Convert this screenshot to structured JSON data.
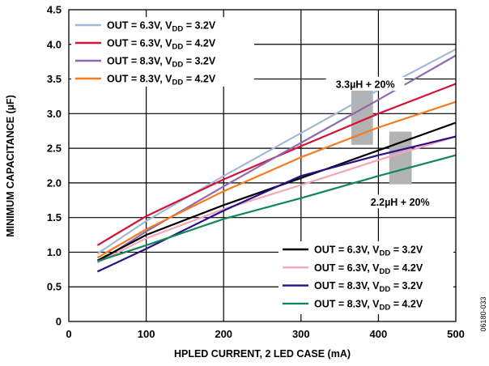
{
  "chart_data": {
    "type": "line",
    "xlabel": "HPLED CURRENT, 2 LED CASE (mA)",
    "ylabel": "MINIMUM CAPACITANCE (µF)",
    "xlim": [
      0,
      500
    ],
    "ylim": [
      0,
      4.5
    ],
    "xticks": [
      0,
      100,
      200,
      300,
      400,
      500
    ],
    "yticks": [
      0,
      0.5,
      1.0,
      1.5,
      2.0,
      2.5,
      3.0,
      3.5,
      4.0,
      4.5
    ],
    "x_tick_labels": [
      "0",
      "100",
      "200",
      "300",
      "400",
      "500"
    ],
    "y_tick_labels": [
      "0",
      "0.5",
      "1.0",
      "1.5",
      "2.0",
      "2.5",
      "3.0",
      "3.5",
      "4.0",
      "4.5"
    ],
    "grid": true,
    "legend_placement": "top-left and bottom-right",
    "series": [
      {
        "label_main": "OUT = 6.3V, V",
        "label_sub": "DD",
        "label_tail": " = 3.2V",
        "color": "#a3b7d6",
        "group": "top",
        "x": [
          37,
          100,
          200,
          300,
          400,
          500
        ],
        "y": [
          0.98,
          1.45,
          2.1,
          2.72,
          3.34,
          3.93
        ]
      },
      {
        "label_main": "OUT = 6.3V, V",
        "label_sub": "DD",
        "label_tail": " = 4.2V",
        "color": "#d2143a",
        "group": "top",
        "x": [
          37,
          100,
          200,
          300,
          400,
          500
        ],
        "y": [
          1.1,
          1.52,
          2.05,
          2.53,
          3.0,
          3.43
        ]
      },
      {
        "label_main": "OUT = 8.3V, V",
        "label_sub": "DD",
        "label_tail": " = 3.2V",
        "color": "#8c6bb1",
        "group": "top",
        "x": [
          37,
          100,
          200,
          300,
          400,
          500
        ],
        "y": [
          0.85,
          1.3,
          1.95,
          2.58,
          3.2,
          3.84
        ]
      },
      {
        "label_main": "OUT = 8.3V, V",
        "label_sub": "DD",
        "label_tail": " = 4.2V",
        "color": "#f47b20",
        "group": "top",
        "x": [
          37,
          100,
          200,
          300,
          400,
          500
        ],
        "y": [
          0.92,
          1.33,
          1.88,
          2.37,
          2.8,
          3.17
        ]
      },
      {
        "label_main": "OUT = 6.3V, V",
        "label_sub": "DD",
        "label_tail": " = 3.2V",
        "color": "#000000",
        "group": "bottom",
        "x": [
          37,
          100,
          200,
          300,
          400,
          500
        ],
        "y": [
          0.88,
          1.25,
          1.68,
          2.07,
          2.47,
          2.87
        ]
      },
      {
        "label_main": "OUT = 6.3V, V",
        "label_sub": "DD",
        "label_tail": " = 4.2V",
        "color": "#f4a6b8",
        "group": "bottom",
        "x": [
          37,
          100,
          200,
          300,
          400,
          500
        ],
        "y": [
          0.85,
          1.2,
          1.62,
          1.97,
          2.33,
          2.67
        ]
      },
      {
        "label_main": "OUT = 8.3V, V",
        "label_sub": "DD",
        "label_tail": " = 3.2V",
        "color": "#2a0d8a",
        "group": "bottom",
        "x": [
          37,
          100,
          200,
          300,
          400,
          500
        ],
        "y": [
          0.72,
          1.05,
          1.6,
          2.1,
          2.4,
          2.67
        ]
      },
      {
        "label_main": "OUT = 8.3V, V",
        "label_sub": "DD",
        "label_tail": " = 4.2V",
        "color": "#12875a",
        "group": "bottom",
        "x": [
          37,
          100,
          200,
          300,
          400,
          500
        ],
        "y": [
          0.87,
          1.1,
          1.48,
          1.78,
          2.1,
          2.4
        ]
      }
    ],
    "bands": [
      {
        "x_range": [
          365,
          393
        ],
        "y_range": [
          2.55,
          3.35
        ],
        "color": "#b3b3b3"
      },
      {
        "x_range": [
          414,
          443
        ],
        "y_range": [
          1.98,
          2.74
        ],
        "color": "#b3b3b3"
      }
    ],
    "annotations": [
      {
        "text": "3.3µH + 20%",
        "x": 383,
        "y": 3.42
      },
      {
        "text": "2.2µH + 20%",
        "x": 428,
        "y": 1.72
      }
    ],
    "figure_code": "06180-033"
  }
}
